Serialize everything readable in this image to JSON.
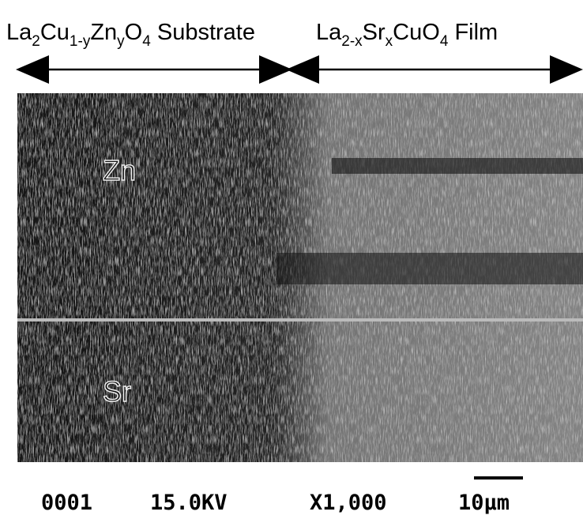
{
  "header": {
    "substrate_label": [
      "La",
      "2",
      "Cu",
      "1-y",
      "Zn",
      "y",
      "O",
      "4",
      " Substrate"
    ],
    "film_label": [
      "La",
      "2-x",
      "Sr",
      "x",
      "CuO",
      "4",
      " Film"
    ]
  },
  "image": {
    "zn_label": "Zn",
    "sr_label": "Sr"
  },
  "footer": {
    "number": "0001",
    "voltage": "15.0KV",
    "magnification": "X1,000",
    "scale": "10µm"
  }
}
